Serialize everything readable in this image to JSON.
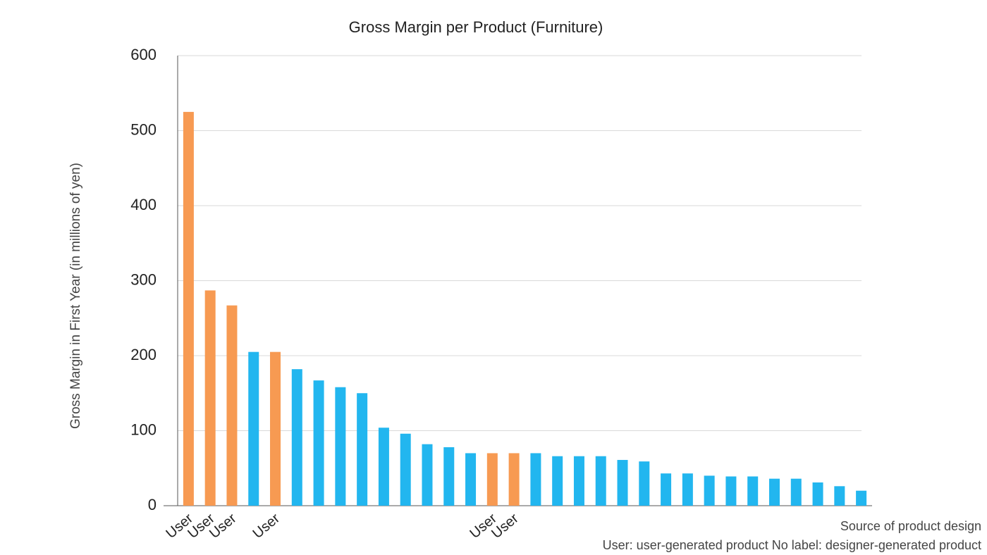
{
  "chart_data": {
    "type": "bar",
    "title": "Gross Margin per Product (Furniture)",
    "y_label": "Gross Margin in First Year (in millions of yen)",
    "notes": [
      "Source of product design",
      "User: user-generated product No label: designer-generated product"
    ],
    "categories": [
      "User",
      "User",
      "User",
      null,
      "User",
      null,
      null,
      null,
      null,
      null,
      null,
      null,
      null,
      null,
      "User",
      "User",
      null,
      null,
      null,
      null,
      null,
      null,
      null,
      null,
      null,
      null,
      null,
      null,
      null,
      null,
      null,
      null
    ],
    "values": [
      525,
      287,
      267,
      205,
      205,
      182,
      167,
      158,
      150,
      104,
      96,
      82,
      78,
      70,
      70,
      70,
      70,
      66,
      66,
      66,
      61,
      59,
      43,
      43,
      40,
      39,
      39,
      36,
      36,
      31,
      26,
      20
    ],
    "colors": [
      "#f79a52",
      "#f79a52",
      "#f79a52",
      "#22b6ef",
      "#f79a52",
      "#22b6ef",
      "#22b6ef",
      "#22b6ef",
      "#22b6ef",
      "#22b6ef",
      "#22b6ef",
      "#22b6ef",
      "#22b6ef",
      "#22b6ef",
      "#f79a52",
      "#f79a52",
      "#22b6ef",
      "#22b6ef",
      "#22b6ef",
      "#22b6ef",
      "#22b6ef",
      "#22b6ef",
      "#22b6ef",
      "#22b6ef",
      "#22b6ef",
      "#22b6ef",
      "#22b6ef",
      "#22b6ef",
      "#22b6ef",
      "#22b6ef",
      "#22b6ef",
      "#22b6ef"
    ],
    "ylim": [
      0,
      600
    ],
    "yticks": [
      0,
      100,
      200,
      300,
      400,
      500,
      600
    ],
    "grid": true
  }
}
